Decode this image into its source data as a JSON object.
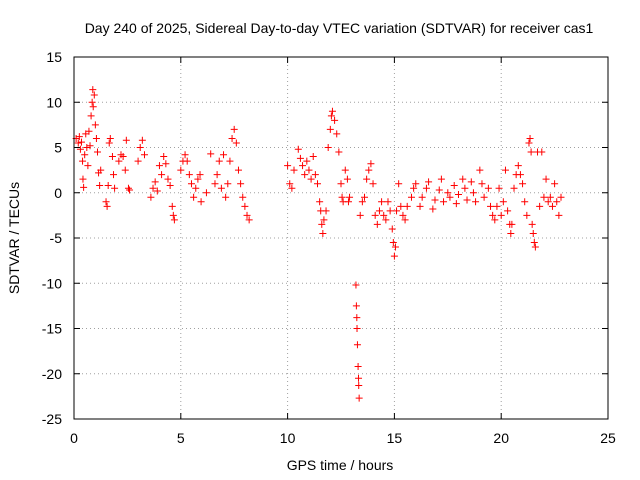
{
  "chart_data": {
    "type": "scatter",
    "title": "Day 240 of 2025, Sidereal Day-to-day VTEC variation (SDTVAR) for receiver cas1",
    "xlabel": "GPS time / hours",
    "ylabel": "SDTVAR / TECUs",
    "xlim": [
      0,
      25
    ],
    "ylim": [
      -25,
      15
    ],
    "xticks": [
      0,
      5,
      10,
      15,
      20,
      25
    ],
    "yticks": [
      -25,
      -20,
      -15,
      -10,
      -5,
      0,
      5,
      10,
      15
    ],
    "grid": true,
    "marker": "+",
    "marker_color": "#ff0000",
    "series": [
      {
        "name": "SDTVAR",
        "points": [
          [
            0.1,
            6.0
          ],
          [
            0.2,
            5.5
          ],
          [
            0.25,
            6.2
          ],
          [
            0.3,
            4.8
          ],
          [
            0.35,
            5.6
          ],
          [
            0.4,
            3.5
          ],
          [
            0.42,
            1.5
          ],
          [
            0.45,
            0.6
          ],
          [
            0.5,
            4.2
          ],
          [
            0.55,
            6.5
          ],
          [
            0.6,
            5.0
          ],
          [
            0.65,
            3.0
          ],
          [
            0.7,
            6.8
          ],
          [
            0.75,
            5.2
          ],
          [
            0.8,
            8.5
          ],
          [
            0.85,
            10.0
          ],
          [
            0.88,
            11.4
          ],
          [
            0.9,
            9.5
          ],
          [
            0.95,
            10.8
          ],
          [
            1.0,
            7.5
          ],
          [
            1.05,
            6.0
          ],
          [
            1.1,
            4.5
          ],
          [
            1.15,
            2.2
          ],
          [
            1.2,
            0.8
          ],
          [
            1.25,
            2.5
          ],
          [
            1.5,
            -1.0
          ],
          [
            1.55,
            -1.5
          ],
          [
            1.6,
            0.8
          ],
          [
            1.65,
            5.5
          ],
          [
            1.7,
            6.0
          ],
          [
            1.8,
            4.0
          ],
          [
            1.85,
            2.0
          ],
          [
            1.9,
            0.5
          ],
          [
            2.1,
            3.5
          ],
          [
            2.2,
            4.2
          ],
          [
            2.3,
            4.0
          ],
          [
            2.4,
            2.5
          ],
          [
            2.45,
            5.8
          ],
          [
            2.55,
            0.5
          ],
          [
            2.6,
            0.3
          ],
          [
            3.0,
            3.5
          ],
          [
            3.1,
            5.0
          ],
          [
            3.2,
            5.8
          ],
          [
            3.3,
            4.2
          ],
          [
            3.6,
            -0.5
          ],
          [
            3.7,
            0.5
          ],
          [
            3.8,
            1.2
          ],
          [
            3.9,
            0.2
          ],
          [
            4.0,
            3.0
          ],
          [
            4.1,
            2.0
          ],
          [
            4.2,
            4.0
          ],
          [
            4.3,
            3.2
          ],
          [
            4.4,
            1.5
          ],
          [
            4.5,
            0.8
          ],
          [
            4.6,
            -1.5
          ],
          [
            4.65,
            -2.5
          ],
          [
            4.7,
            -3.0
          ],
          [
            5.0,
            2.5
          ],
          [
            5.1,
            3.5
          ],
          [
            5.2,
            4.2
          ],
          [
            5.3,
            3.5
          ],
          [
            5.4,
            2.0
          ],
          [
            5.5,
            1.0
          ],
          [
            5.6,
            -0.5
          ],
          [
            5.7,
            0.5
          ],
          [
            5.8,
            1.5
          ],
          [
            5.9,
            2.0
          ],
          [
            5.95,
            -1.0
          ],
          [
            6.2,
            0.0
          ],
          [
            6.4,
            4.3
          ],
          [
            6.6,
            1.0
          ],
          [
            6.7,
            2.0
          ],
          [
            6.8,
            3.5
          ],
          [
            6.9,
            0.5
          ],
          [
            7.0,
            4.2
          ],
          [
            7.1,
            -0.5
          ],
          [
            7.2,
            1.0
          ],
          [
            7.3,
            3.5
          ],
          [
            7.4,
            6.0
          ],
          [
            7.5,
            7.0
          ],
          [
            7.6,
            5.5
          ],
          [
            7.7,
            2.5
          ],
          [
            7.8,
            1.0
          ],
          [
            7.9,
            -0.5
          ],
          [
            8.0,
            -1.5
          ],
          [
            8.1,
            -2.5
          ],
          [
            8.2,
            -3.0
          ],
          [
            10.0,
            3.0
          ],
          [
            10.1,
            1.0
          ],
          [
            10.2,
            0.5
          ],
          [
            10.3,
            2.5
          ],
          [
            10.5,
            4.8
          ],
          [
            10.6,
            3.8
          ],
          [
            10.7,
            3.0
          ],
          [
            10.8,
            2.0
          ],
          [
            10.9,
            3.5
          ],
          [
            11.0,
            2.5
          ],
          [
            11.1,
            1.5
          ],
          [
            11.2,
            4.0
          ],
          [
            11.3,
            2.0
          ],
          [
            11.4,
            1.0
          ],
          [
            11.5,
            -1.0
          ],
          [
            11.55,
            -2.0
          ],
          [
            11.6,
            -3.5
          ],
          [
            11.65,
            -4.5
          ],
          [
            11.7,
            -3.0
          ],
          [
            11.8,
            -2.0
          ],
          [
            11.9,
            5.0
          ],
          [
            12.0,
            7.0
          ],
          [
            12.05,
            8.5
          ],
          [
            12.1,
            9.0
          ],
          [
            12.2,
            8.0
          ],
          [
            12.3,
            6.5
          ],
          [
            12.4,
            4.5
          ],
          [
            12.5,
            1.0
          ],
          [
            12.55,
            -0.5
          ],
          [
            12.6,
            -1.0
          ],
          [
            12.7,
            2.5
          ],
          [
            12.8,
            1.5
          ],
          [
            12.85,
            -1.0
          ],
          [
            12.9,
            -0.5
          ],
          [
            13.2,
            -10.2
          ],
          [
            13.22,
            -12.5
          ],
          [
            13.24,
            -13.8
          ],
          [
            13.25,
            -15.0
          ],
          [
            13.27,
            -16.8
          ],
          [
            13.3,
            -19.2
          ],
          [
            13.32,
            -20.5
          ],
          [
            13.33,
            -21.3
          ],
          [
            13.35,
            -22.7
          ],
          [
            13.4,
            -2.5
          ],
          [
            13.5,
            -1.0
          ],
          [
            13.6,
            -0.5
          ],
          [
            13.7,
            1.5
          ],
          [
            13.8,
            2.5
          ],
          [
            13.9,
            3.2
          ],
          [
            14.0,
            1.0
          ],
          [
            14.1,
            -2.5
          ],
          [
            14.2,
            -3.5
          ],
          [
            14.3,
            -2.0
          ],
          [
            14.4,
            -1.0
          ],
          [
            14.5,
            -2.5
          ],
          [
            14.6,
            -3.0
          ],
          [
            14.7,
            -1.0
          ],
          [
            14.8,
            -2.0
          ],
          [
            14.9,
            -4.0
          ],
          [
            14.95,
            -5.5
          ],
          [
            15.0,
            -7.0
          ],
          [
            15.05,
            -6.0
          ],
          [
            15.1,
            -2.0
          ],
          [
            15.2,
            1.0
          ],
          [
            15.3,
            -1.5
          ],
          [
            15.4,
            -2.5
          ],
          [
            15.5,
            -3.0
          ],
          [
            15.6,
            -1.5
          ],
          [
            15.8,
            -0.5
          ],
          [
            15.9,
            0.5
          ],
          [
            16.0,
            1.0
          ],
          [
            16.2,
            -1.5
          ],
          [
            16.3,
            -0.5
          ],
          [
            16.5,
            0.5
          ],
          [
            16.6,
            1.2
          ],
          [
            16.8,
            -1.8
          ],
          [
            16.9,
            -0.8
          ],
          [
            17.1,
            0.3
          ],
          [
            17.2,
            1.5
          ],
          [
            17.3,
            -1.0
          ],
          [
            17.5,
            0.0
          ],
          [
            17.6,
            -0.5
          ],
          [
            17.8,
            0.8
          ],
          [
            17.9,
            -1.2
          ],
          [
            18.0,
            -0.2
          ],
          [
            18.2,
            1.5
          ],
          [
            18.3,
            0.5
          ],
          [
            18.4,
            -0.8
          ],
          [
            18.6,
            1.2
          ],
          [
            18.7,
            0.0
          ],
          [
            18.8,
            -1.0
          ],
          [
            19.0,
            2.5
          ],
          [
            19.1,
            1.0
          ],
          [
            19.2,
            -0.5
          ],
          [
            19.4,
            0.5
          ],
          [
            19.5,
            -1.5
          ],
          [
            19.6,
            -2.5
          ],
          [
            19.7,
            -3.0
          ],
          [
            19.8,
            -1.5
          ],
          [
            19.9,
            0.5
          ],
          [
            20.0,
            -2.5
          ],
          [
            20.1,
            -1.0
          ],
          [
            20.2,
            2.5
          ],
          [
            20.3,
            -2.0
          ],
          [
            20.4,
            -3.5
          ],
          [
            20.45,
            -4.5
          ],
          [
            20.5,
            -3.5
          ],
          [
            20.6,
            0.5
          ],
          [
            20.7,
            2.0
          ],
          [
            20.8,
            3.0
          ],
          [
            20.9,
            2.0
          ],
          [
            21.0,
            1.0
          ],
          [
            21.1,
            -1.0
          ],
          [
            21.2,
            -2.5
          ],
          [
            21.3,
            5.5
          ],
          [
            21.35,
            6.0
          ],
          [
            21.4,
            4.5
          ],
          [
            21.45,
            -3.5
          ],
          [
            21.5,
            -4.5
          ],
          [
            21.55,
            -5.5
          ],
          [
            21.6,
            -6.0
          ],
          [
            21.7,
            4.5
          ],
          [
            21.8,
            -1.5
          ],
          [
            21.9,
            4.5
          ],
          [
            22.0,
            -0.5
          ],
          [
            22.1,
            1.5
          ],
          [
            22.2,
            -1.0
          ],
          [
            22.3,
            -0.5
          ],
          [
            22.4,
            -1.5
          ],
          [
            22.5,
            1.0
          ],
          [
            22.6,
            -1.0
          ],
          [
            22.7,
            -2.5
          ],
          [
            22.8,
            -0.5
          ]
        ]
      }
    ]
  }
}
